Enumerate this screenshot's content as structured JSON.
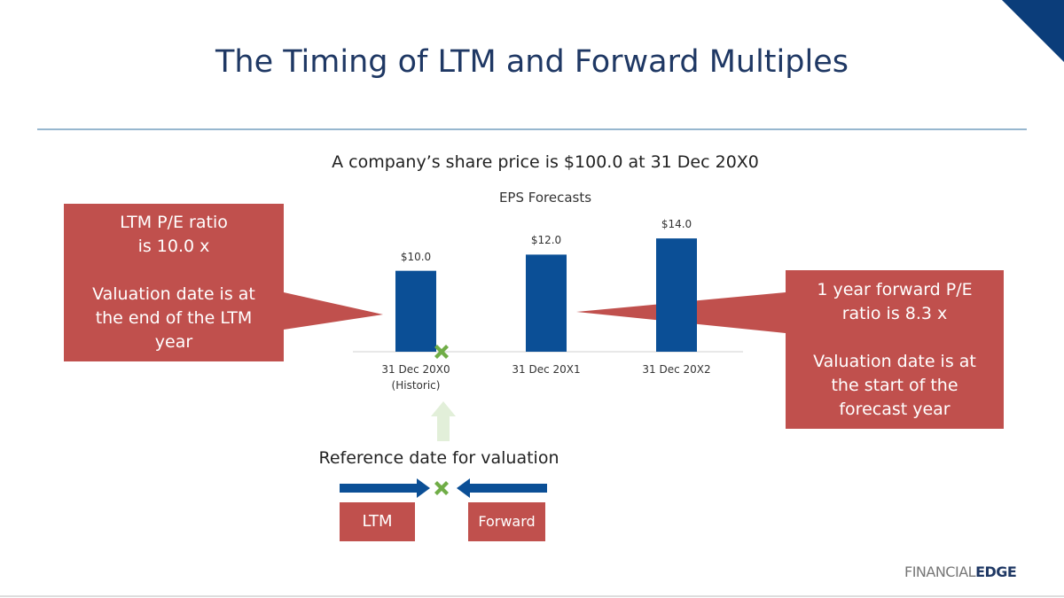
{
  "title": "The Timing of LTM and Forward Multiples",
  "subtitle": "A company’s share price is $100.0 at 31 Dec 20X0",
  "chart_data": {
    "type": "bar",
    "title": "EPS Forecasts",
    "categories": [
      "31 Dec 20X0\n(Historic)",
      "31 Dec 20X1",
      "31 Dec 20X2"
    ],
    "values": [
      10,
      12,
      14
    ],
    "value_labels": [
      "$10.0",
      "$12.0",
      "$14.0"
    ],
    "color": "#0b4f96",
    "ylim": [
      0,
      15
    ]
  },
  "callouts": {
    "ltm": {
      "ratio": "LTM P/E ratio\nis 10.0 x",
      "valuation": "Valuation date is at\nthe end of the LTM\nyear"
    },
    "forward": {
      "ratio": "1 year forward P/E\nratio is 8.3 x",
      "valuation": "Valuation date is at\nthe start of the\nforecast year"
    }
  },
  "reference": {
    "label": "Reference date for valuation",
    "left": "LTM",
    "right": "Forward"
  },
  "logo": {
    "first": "FINANCIAL",
    "second": "EDGE"
  }
}
